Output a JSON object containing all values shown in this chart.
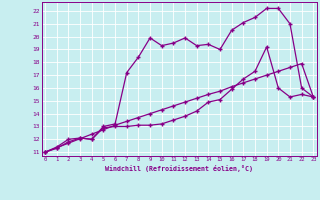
{
  "bg_color": "#c8eef0",
  "grid_color": "#b0d8dc",
  "line_color": "#880088",
  "xlim": [
    -0.3,
    23.3
  ],
  "ylim": [
    10.7,
    22.7
  ],
  "xticks": [
    0,
    1,
    2,
    3,
    4,
    5,
    6,
    7,
    8,
    9,
    10,
    11,
    12,
    13,
    14,
    15,
    16,
    17,
    18,
    19,
    20,
    21,
    22,
    23
  ],
  "yticks": [
    11,
    12,
    13,
    14,
    15,
    16,
    17,
    18,
    19,
    20,
    21,
    22
  ],
  "xlabel": "Windchill (Refroidissement éolien,°C)",
  "line1_x": [
    0,
    1,
    2,
    3,
    4,
    5,
    6,
    7,
    8,
    9,
    10,
    11,
    12,
    13,
    14,
    15,
    16,
    17,
    18,
    19,
    20,
    21,
    22,
    23
  ],
  "line1_y": [
    11,
    11.35,
    11.7,
    12.05,
    12.4,
    12.75,
    13.1,
    13.4,
    13.7,
    14.0,
    14.3,
    14.6,
    14.9,
    15.2,
    15.5,
    15.75,
    16.1,
    16.4,
    16.7,
    17.0,
    17.3,
    17.6,
    17.9,
    15.3
  ],
  "line2_x": [
    0,
    1,
    2,
    3,
    4,
    5,
    6,
    7,
    8,
    9,
    10,
    11,
    12,
    13,
    14,
    15,
    16,
    17,
    18,
    19,
    20,
    21,
    22,
    23
  ],
  "line2_y": [
    11,
    11.3,
    11.8,
    12.1,
    12.0,
    12.9,
    13.0,
    13.0,
    13.1,
    13.1,
    13.2,
    13.5,
    13.8,
    14.2,
    14.9,
    15.1,
    15.9,
    16.7,
    17.3,
    19.2,
    16.0,
    15.3,
    15.5,
    15.3
  ],
  "line3_x": [
    0,
    1,
    2,
    3,
    4,
    5,
    6,
    7,
    8,
    9,
    10,
    11,
    12,
    13,
    14,
    15,
    16,
    17,
    18,
    19,
    20,
    21,
    22,
    23
  ],
  "line3_y": [
    11,
    11.4,
    12.0,
    12.1,
    12.0,
    13.0,
    13.2,
    17.2,
    18.4,
    19.9,
    19.3,
    19.5,
    19.9,
    19.3,
    19.4,
    19.0,
    20.5,
    21.1,
    21.5,
    22.2,
    22.2,
    21.0,
    16.0,
    15.3
  ]
}
